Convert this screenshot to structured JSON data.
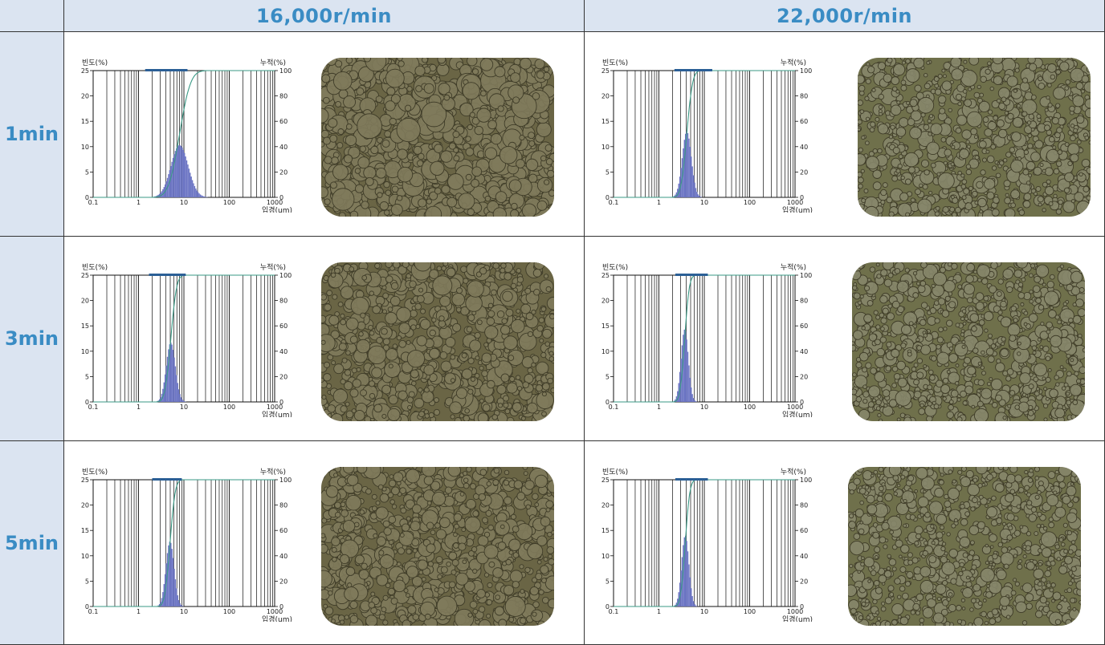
{
  "columns": [
    "16,000r/min",
    "22,000r/min"
  ],
  "rows": [
    "1min",
    "3min",
    "5min"
  ],
  "chart_axes": {
    "left_label": "빈도(%)",
    "right_label": "누적(%)",
    "x_label": "입경(um)",
    "x_ticks": [
      "0.1",
      "1",
      "10",
      "100",
      "1000"
    ],
    "y_left_ticks": [
      "0",
      "5",
      "10",
      "15",
      "20",
      "25"
    ],
    "y_right_ticks": [
      "0",
      "20",
      "40",
      "60",
      "80",
      "100"
    ]
  },
  "colors": {
    "header_bg": "#dbe4f1",
    "header_text": "#3a8cc4",
    "bar": "#6c75c4",
    "cumulative_line": "#3a9a86",
    "range_bar": "#2b5f96",
    "photo_bg": "#6d6a49"
  },
  "chart_data": [
    {
      "type": "bar",
      "title": "",
      "condition": "16,000r/min, 1min",
      "x_scale": "log",
      "xlim": [
        0.1,
        1000
      ],
      "ylim": [
        0,
        25
      ],
      "y2lim": [
        0,
        100
      ],
      "peak_x": 7.8,
      "peak_y": 10.3,
      "spread": 0.19,
      "range_x": [
        1.4,
        12
      ]
    },
    {
      "type": "bar",
      "title": "",
      "condition": "22,000r/min, 1min",
      "x_scale": "log",
      "xlim": [
        0.1,
        1000
      ],
      "ylim": [
        0,
        25
      ],
      "y2lim": [
        0,
        100
      ],
      "peak_x": 4.0,
      "peak_y": 13.0,
      "spread": 0.1,
      "range_x": [
        2.2,
        15
      ]
    },
    {
      "type": "bar",
      "title": "",
      "condition": "16,000r/min, 3min",
      "x_scale": "log",
      "xlim": [
        0.1,
        1000
      ],
      "ylim": [
        0,
        25
      ],
      "y2lim": [
        0,
        100
      ],
      "peak_x": 5.0,
      "peak_y": 11.7,
      "spread": 0.1,
      "range_x": [
        1.7,
        11
      ]
    },
    {
      "type": "bar",
      "title": "",
      "condition": "22,000r/min, 3min",
      "x_scale": "log",
      "xlim": [
        0.1,
        1000
      ],
      "ylim": [
        0,
        25
      ],
      "y2lim": [
        0,
        100
      ],
      "peak_x": 3.6,
      "peak_y": 14.3,
      "spread": 0.08,
      "range_x": [
        2.3,
        12
      ]
    },
    {
      "type": "bar",
      "title": "",
      "condition": "16,000r/min, 5min",
      "x_scale": "log",
      "xlim": [
        0.1,
        1000
      ],
      "ylim": [
        0,
        25
      ],
      "y2lim": [
        0,
        100
      ],
      "peak_x": 4.8,
      "peak_y": 12.8,
      "spread": 0.09,
      "range_x": [
        2.0,
        9.0
      ]
    },
    {
      "type": "bar",
      "title": "",
      "condition": "22,000r/min, 5min",
      "x_scale": "log",
      "xlim": [
        0.1,
        1000
      ],
      "ylim": [
        0,
        25
      ],
      "y2lim": [
        0,
        100
      ],
      "peak_x": 3.7,
      "peak_y": 14.0,
      "spread": 0.08,
      "range_x": [
        2.3,
        12
      ]
    }
  ]
}
